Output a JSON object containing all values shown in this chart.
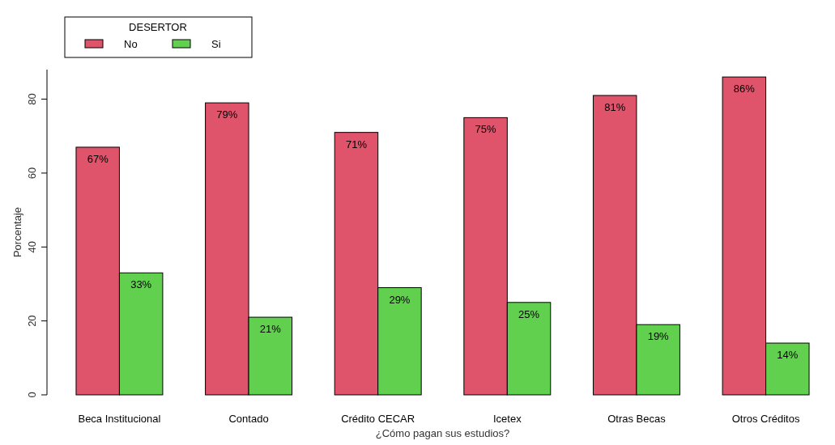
{
  "chart_data": {
    "type": "bar",
    "xlabel": "¿Cómo pagan sus estudios?",
    "ylabel": "Porcentaje",
    "legend_title": "DESERTOR",
    "legend": "top left",
    "categories": [
      "Beca Institucional",
      "Contado",
      "Crédito CECAR",
      "Icetex",
      "Otras Becas",
      "Otros Créditos"
    ],
    "series": [
      {
        "name": "No",
        "color": "#df536b",
        "values": [
          67,
          79,
          71,
          75,
          81,
          86
        ],
        "value_labels": [
          "67%",
          "79%",
          "71%",
          "75%",
          "81%",
          "86%"
        ]
      },
      {
        "name": "Si",
        "color": "#61d04f",
        "values": [
          33,
          21,
          29,
          25,
          19,
          14
        ],
        "value_labels": [
          "33%",
          "21%",
          "29%",
          "25%",
          "19%",
          "14%"
        ]
      }
    ],
    "ylim": [
      0,
      88
    ],
    "yticks": [
      0,
      20,
      40,
      60,
      80
    ],
    "grid": false
  }
}
